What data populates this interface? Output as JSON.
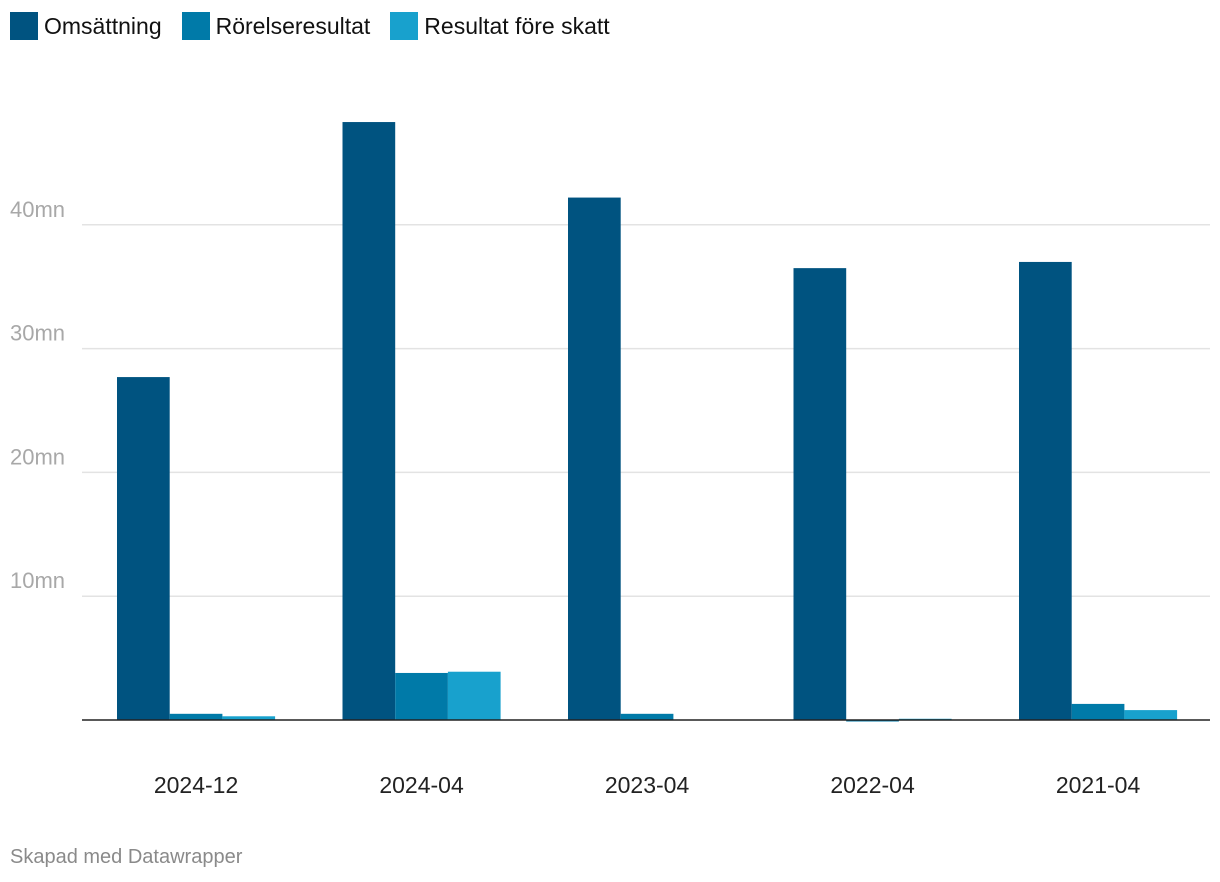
{
  "chart_data": {
    "type": "bar",
    "categories": [
      "2024-12",
      "2024-04",
      "2023-04",
      "2022-04",
      "2021-04"
    ],
    "series": [
      {
        "name": "Omsättning",
        "color": "#005380",
        "values": [
          27.7,
          48.3,
          42.2,
          36.5,
          37.0
        ]
      },
      {
        "name": "Rörelseresultat",
        "color": "#007aa8",
        "values": [
          0.5,
          3.8,
          0.5,
          -0.1,
          1.3
        ]
      },
      {
        "name": "Resultat före skatt",
        "color": "#18a1cd",
        "values": [
          0.3,
          3.9,
          0.0,
          0.1,
          0.8
        ]
      }
    ],
    "ylim": [
      0,
      50
    ],
    "yticks": [
      10,
      20,
      30,
      40
    ],
    "ytick_labels": [
      "10mn",
      "20mn",
      "30mn",
      "40mn"
    ],
    "grid": true,
    "legend": "top-left"
  },
  "footer": {
    "credit": "Skapad med Datawrapper"
  }
}
